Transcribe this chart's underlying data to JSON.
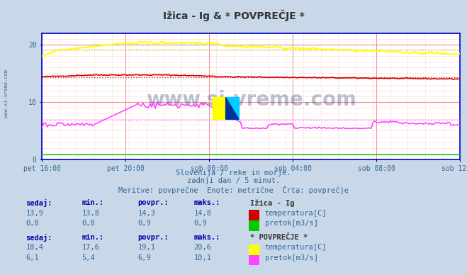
{
  "title": "Ižica - Ig & * POVPREČJE *",
  "background_color": "#c8d8e8",
  "plot_bg_color": "#ffffff",
  "x_labels": [
    "pet 16:00",
    "pet 20:00",
    "sob 00:00",
    "sob 04:00",
    "sob 08:00",
    "sob 12:00"
  ],
  "x_ticks": [
    0,
    48,
    96,
    144,
    192,
    240
  ],
  "x_max": 240,
  "y_min": 0,
  "y_max": 22,
  "y_ticks": [
    0,
    10,
    20
  ],
  "subtitle1": "Slovenija / reke in morje.",
  "subtitle2": "zadnji dan / 5 minut.",
  "subtitle3": "Meritve: povprečne  Enote: metrične  Črta: povprečje",
  "watermark": "www.si-vreme.com",
  "legend_section1_title": "Ižica - Ig",
  "legend_section1_row1_label": "temperatura[C]",
  "legend_section1_row1_color": "#cc0000",
  "legend_section1_row2_label": "pretok[m3/s]",
  "legend_section1_row2_color": "#00cc00",
  "legend_section2_title": "* POVPREČJE *",
  "legend_section2_row1_label": "temperatura[C]",
  "legend_section2_row1_color": "#ffff00",
  "legend_section2_row2_label": "pretok[m3/s]",
  "legend_section2_row2_color": "#ff44ff",
  "stats_headers": [
    "sedaj:",
    "min.:",
    "povpr.:",
    "maks.:"
  ],
  "stats_ig_temp": [
    "13,9",
    "13,8",
    "14,3",
    "14,8"
  ],
  "stats_ig_pretok": [
    "0,8",
    "0,8",
    "0,9",
    "0,9"
  ],
  "stats_avg_temp": [
    "18,4",
    "17,6",
    "19,1",
    "20,6"
  ],
  "stats_avg_pretok": [
    "6,1",
    "5,4",
    "6,9",
    "10,1"
  ],
  "tick_label_color": "#336699",
  "header_color": "#0000aa",
  "value_color": "#336699",
  "title_color": "#333333",
  "subtitle_color": "#336699",
  "left_watermark_color": "#336699",
  "axis_color": "#0000cc",
  "grid_major_color": "#ee9999",
  "grid_minor_color": "#ffdddd",
  "ig_temp_avg": 14.3,
  "ig_pretok_avg": 0.9,
  "avg_temp_avg": 19.1,
  "avg_pretok_avg": 6.9
}
